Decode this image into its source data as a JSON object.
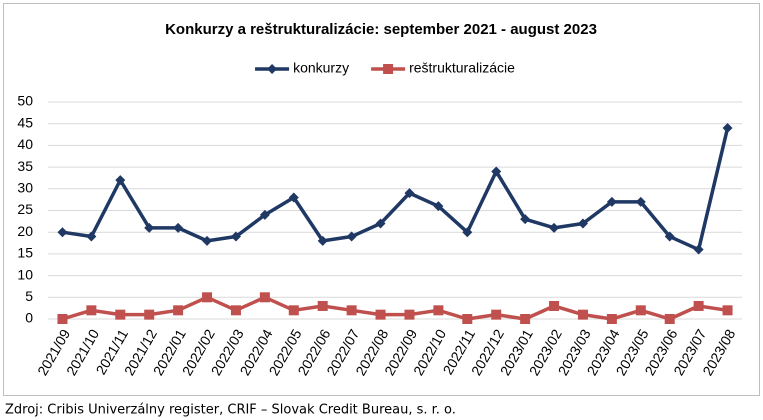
{
  "chart_data": {
    "type": "line",
    "title": "Konkurzy a reštrukturalizácie: september 2021 - august 2023",
    "categories": [
      "2021/09",
      "2021/10",
      "2021/11",
      "2021/12",
      "2022/01",
      "2022/02",
      "2022/03",
      "2022/04",
      "2022/05",
      "2022/06",
      "2022/07",
      "2022/08",
      "2022/09",
      "2022/10",
      "2022/11",
      "2022/12",
      "2023/01",
      "2023/02",
      "2023/03",
      "2023/04",
      "2023/05",
      "2023/06",
      "2023/07",
      "2023/08"
    ],
    "series": [
      {
        "name": "konkurzy",
        "color": "#1f3864",
        "marker": "diamond",
        "values": [
          20,
          19,
          32,
          21,
          21,
          18,
          19,
          24,
          28,
          18,
          19,
          22,
          29,
          26,
          20,
          34,
          23,
          21,
          22,
          27,
          27,
          19,
          16,
          44
        ]
      },
      {
        "name": "reštrukturalizácie",
        "color": "#c0504d",
        "marker": "square",
        "values": [
          0,
          2,
          1,
          1,
          2,
          5,
          2,
          5,
          2,
          3,
          2,
          1,
          1,
          2,
          0,
          1,
          0,
          3,
          1,
          0,
          2,
          0,
          3,
          2
        ]
      }
    ],
    "ylim": [
      0,
      50
    ],
    "yticks": [
      0,
      5,
      10,
      15,
      20,
      25,
      30,
      35,
      40,
      45,
      50
    ],
    "grid": true,
    "legend": "top",
    "source": "Zdroj: Cribis Univerzálny register, CRIF – Slovak Credit Bureau, s. r. o."
  }
}
